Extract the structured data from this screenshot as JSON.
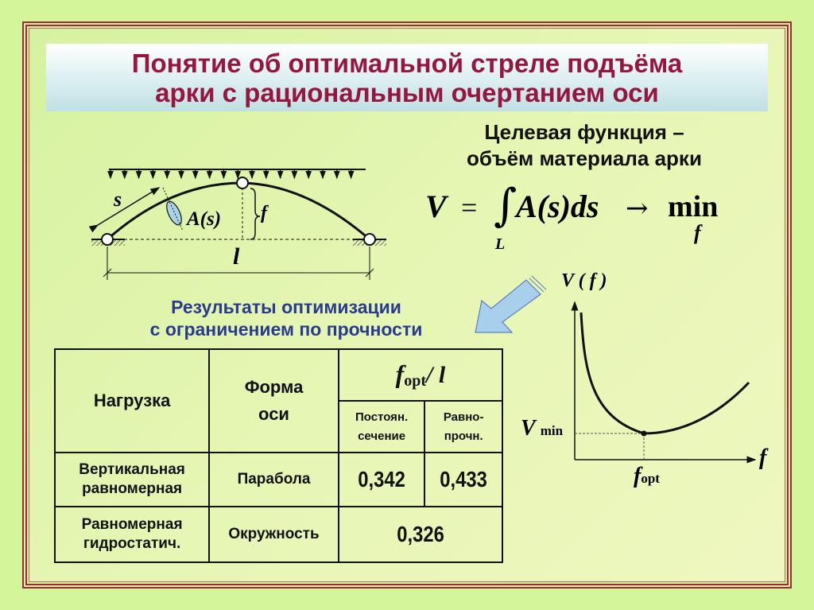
{
  "title": [
    "Понятие об оптимальной стреле подъёма",
    "арки с рациональным очертанием оси"
  ],
  "objective": {
    "line1": "Целевая функция –",
    "line2": "объём материала арки",
    "formula": {
      "lhs": "V",
      "eq": "=",
      "integral": "∫",
      "limit": "L",
      "integrand": "A(s)ds",
      "arrow": "→",
      "min": "min",
      "sub": "f"
    }
  },
  "arch_diagram": {
    "s": "s",
    "area": "A(s)",
    "f": "f",
    "l": "l"
  },
  "results_heading": [
    "Результаты оптимизации",
    "с ограничением по прочности"
  ],
  "table": {
    "headers": {
      "load": "Нагрузка",
      "shape": "Форма оси",
      "ratio_f": "f",
      "ratio_sub": "opt",
      "ratio_l": "/ l",
      "const": [
        "Постоян.",
        "сечение"
      ],
      "equal": [
        "Равно-",
        "прочн."
      ]
    },
    "rows": [
      {
        "load": [
          "Вертикальная",
          "равномерная"
        ],
        "shape": "Парабола",
        "const": "0,342",
        "equal": "0,433"
      },
      {
        "load": [
          "Равномерная",
          "гидростатич."
        ],
        "shape": "Окружность",
        "both": "0,326"
      }
    ]
  },
  "graph": {
    "ylabel": "V ( f )",
    "xlabel": "f",
    "vmin": "V",
    "vmin_sub": "min",
    "fopt": "f",
    "fopt_sub": "opt"
  },
  "colors": {
    "background": "#d4f59a",
    "title": "#96163e",
    "frame": "#a0283c",
    "results_heading": "#2a3b8f",
    "arrow": "#a8d0ec"
  }
}
